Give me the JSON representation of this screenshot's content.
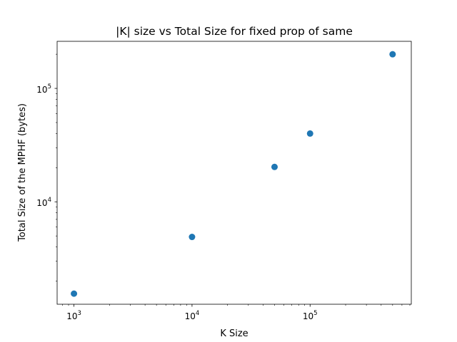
{
  "chart_data": {
    "type": "scatter",
    "title": "|K| size vs Total Size for fixed prop of same",
    "xlabel": "K Size",
    "ylabel": "Total Size of the MPHF (bytes)",
    "xscale": "log",
    "yscale": "log",
    "xlim": [
      720,
      720000
    ],
    "ylim": [
      1250,
      260000
    ],
    "grid": false,
    "legend": "none",
    "color": "#1f77b4",
    "x_major_ticks": [
      {
        "value": 1000,
        "base": "10",
        "exp": "3"
      },
      {
        "value": 10000,
        "base": "10",
        "exp": "4"
      },
      {
        "value": 100000,
        "base": "10",
        "exp": "5"
      }
    ],
    "y_major_ticks": [
      {
        "value": 10000,
        "base": "10",
        "exp": "4"
      },
      {
        "value": 100000,
        "base": "10",
        "exp": "5"
      }
    ],
    "series": [
      {
        "x": [
          1000,
          10000,
          50000,
          100000,
          500000
        ],
        "y": [
          1550,
          4900,
          20300,
          40000,
          200000
        ]
      }
    ]
  }
}
